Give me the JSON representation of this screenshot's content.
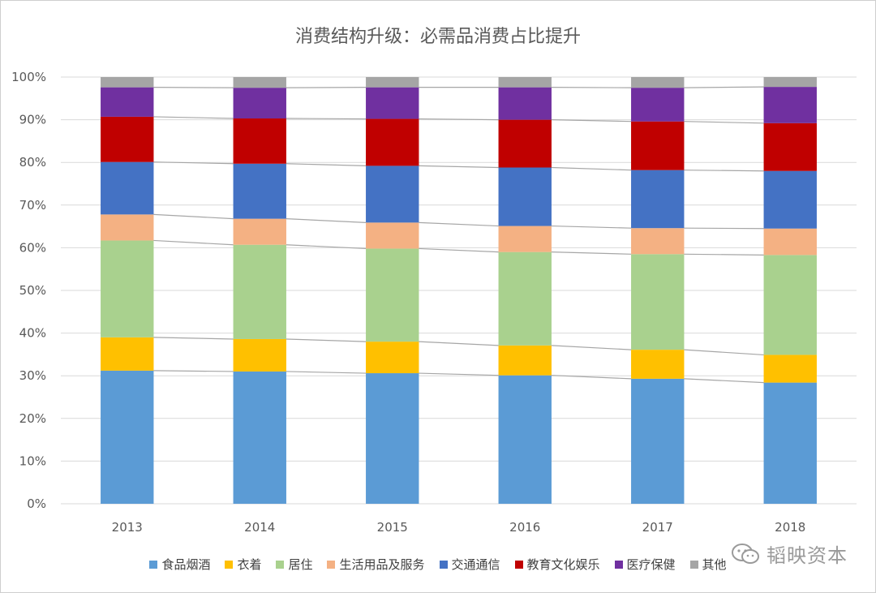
{
  "chart_data": {
    "type": "bar",
    "stacked": true,
    "title": "消费结构升级：必需品消费占比提升",
    "categories": [
      "2013",
      "2014",
      "2015",
      "2016",
      "2017",
      "2018"
    ],
    "y_tick_labels": [
      "0%",
      "10%",
      "20%",
      "30%",
      "40%",
      "50%",
      "60%",
      "70%",
      "80%",
      "90%",
      "100%"
    ],
    "ylim": [
      0,
      100
    ],
    "grid": true,
    "legend_position": "bottom",
    "series_connector_lines": true,
    "series": [
      {
        "name": "食品烟酒",
        "color": "#5b9bd5",
        "values": [
          31.2,
          31.0,
          30.6,
          30.1,
          29.3,
          28.4
        ]
      },
      {
        "name": "衣着",
        "color": "#ffc000",
        "values": [
          7.8,
          7.6,
          7.4,
          7.0,
          6.8,
          6.5
        ]
      },
      {
        "name": "居住",
        "color": "#a9d18e",
        "values": [
          22.7,
          22.1,
          21.8,
          21.9,
          22.4,
          23.4
        ]
      },
      {
        "name": "生活用品及服务",
        "color": "#f4b183",
        "values": [
          6.1,
          6.1,
          6.1,
          6.1,
          6.1,
          6.2
        ]
      },
      {
        "name": "交通通信",
        "color": "#4472c4",
        "values": [
          12.3,
          12.9,
          13.3,
          13.7,
          13.6,
          13.5
        ]
      },
      {
        "name": "教育文化娱乐",
        "color": "#c00000",
        "values": [
          10.6,
          10.6,
          11.0,
          11.2,
          11.4,
          11.2
        ]
      },
      {
        "name": "医疗保健",
        "color": "#7030a0",
        "values": [
          6.9,
          7.2,
          7.4,
          7.6,
          7.9,
          8.5
        ]
      },
      {
        "name": "其他",
        "color": "#a5a5a5",
        "values": [
          2.4,
          2.5,
          2.4,
          2.4,
          2.5,
          2.3
        ]
      }
    ]
  },
  "watermark": {
    "text": "韬映资本",
    "icon": "wechat-icon"
  }
}
